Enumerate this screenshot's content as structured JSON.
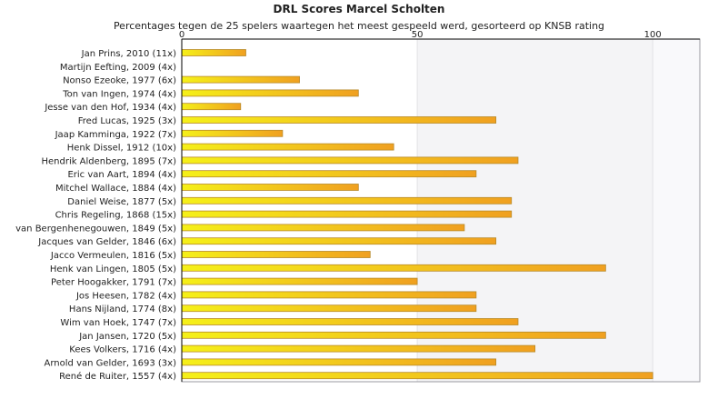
{
  "chart_data": {
    "type": "bar",
    "orientation": "horizontal",
    "title": "DRL Scores Marcel Scholten",
    "subtitle": "Percentages tegen de 25 spelers waartegen het meest gespeeld werd, gesorteerd op KNSB rating",
    "xlim": [
      0,
      110
    ],
    "x_ticks": [
      "0",
      "50",
      "100"
    ],
    "x_tick_values": [
      0,
      50,
      100
    ],
    "grid": "vertical bands",
    "categories": [
      "Jan Prins, 2010 (11x)",
      "Martijn Eefting, 2009 (4x)",
      "Nonso Ezeoke, 1977 (6x)",
      "Ton van Ingen, 1974 (4x)",
      "Jesse van den Hof, 1934 (4x)",
      "Fred Lucas, 1925 (3x)",
      "Jaap Kamminga, 1922 (7x)",
      "Henk Dissel, 1912 (10x)",
      "Hendrik Aldenberg, 1895 (7x)",
      "Eric van Aart, 1894 (4x)",
      "Mitchel Wallace, 1884 (4x)",
      "Daniel Weise, 1877 (5x)",
      "Chris Regeling, 1868 (15x)",
      "van Bergenhenegouwen, 1849 (5x)",
      "Jacques van Gelder, 1846 (6x)",
      "Jacco Vermeulen, 1816 (5x)",
      "Henk van Lingen, 1805 (5x)",
      "Peter Hoogakker, 1791 (7x)",
      "Jos Heesen, 1782 (4x)",
      "Hans Nijland, 1774 (8x)",
      "Wim van Hoek, 1747 (7x)",
      "Jan Jansen, 1720 (5x)",
      "Kees Volkers, 1716 (4x)",
      "Arnold van Gelder, 1693 (3x)",
      "René de Ruiter, 1557 (4x)"
    ],
    "values": [
      13.6,
      0,
      25,
      37.5,
      12.5,
      66.7,
      21.4,
      45,
      71.4,
      62.5,
      37.5,
      70,
      70,
      60,
      66.7,
      40,
      90,
      50,
      62.5,
      62.5,
      71.4,
      90,
      75,
      66.7,
      100
    ],
    "colors": {
      "bar_start": "#f5f019",
      "bar_end": "#f0a020",
      "bar_stroke": "#b88a2a",
      "band_light": "#f4f4f6",
      "band_lighter": "#f9f9fb",
      "axis": "#000000"
    }
  }
}
